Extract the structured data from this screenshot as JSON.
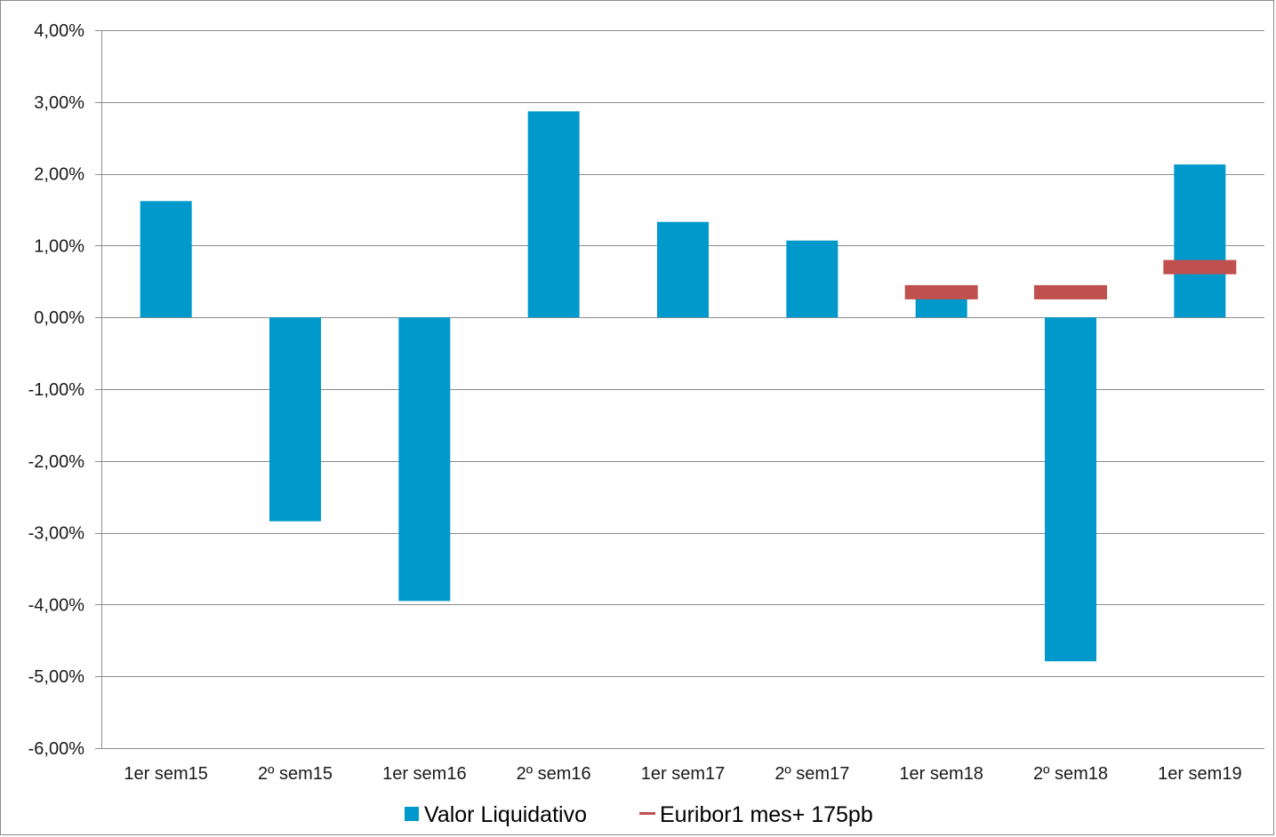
{
  "chart_data": {
    "type": "bar",
    "title": "",
    "xlabel": "",
    "ylabel": "",
    "categories": [
      "1er sem15",
      "2º sem15",
      "1er sem16",
      "2º sem16",
      "1er sem17",
      "2º sem17",
      "1er sem18",
      "2º sem18",
      "1er sem19"
    ],
    "series": [
      {
        "name": "Valor Liquidativo",
        "kind": "bar",
        "color": "#0099cc",
        "values": [
          1.62,
          -2.84,
          -3.95,
          2.87,
          1.33,
          1.07,
          0.26,
          -4.79,
          2.13
        ]
      },
      {
        "name": "Euribor1 mes+ 175pb",
        "kind": "marker",
        "color": "#c0504d",
        "values": [
          null,
          null,
          null,
          null,
          null,
          null,
          0.35,
          0.35,
          0.7
        ]
      }
    ],
    "ylim": [
      -6,
      4
    ],
    "yticks": [
      4,
      3,
      2,
      1,
      0,
      -1,
      -2,
      -3,
      -4,
      -5,
      -6
    ],
    "ytick_labels": [
      "4,00%",
      "3,00%",
      "2,00%",
      "1,00%",
      "0,00%",
      "-1,00%",
      "-2,00%",
      "-3,00%",
      "-4,00%",
      "-5,00%",
      "-6,00%"
    ],
    "grid": true,
    "legend_position": "bottom"
  }
}
